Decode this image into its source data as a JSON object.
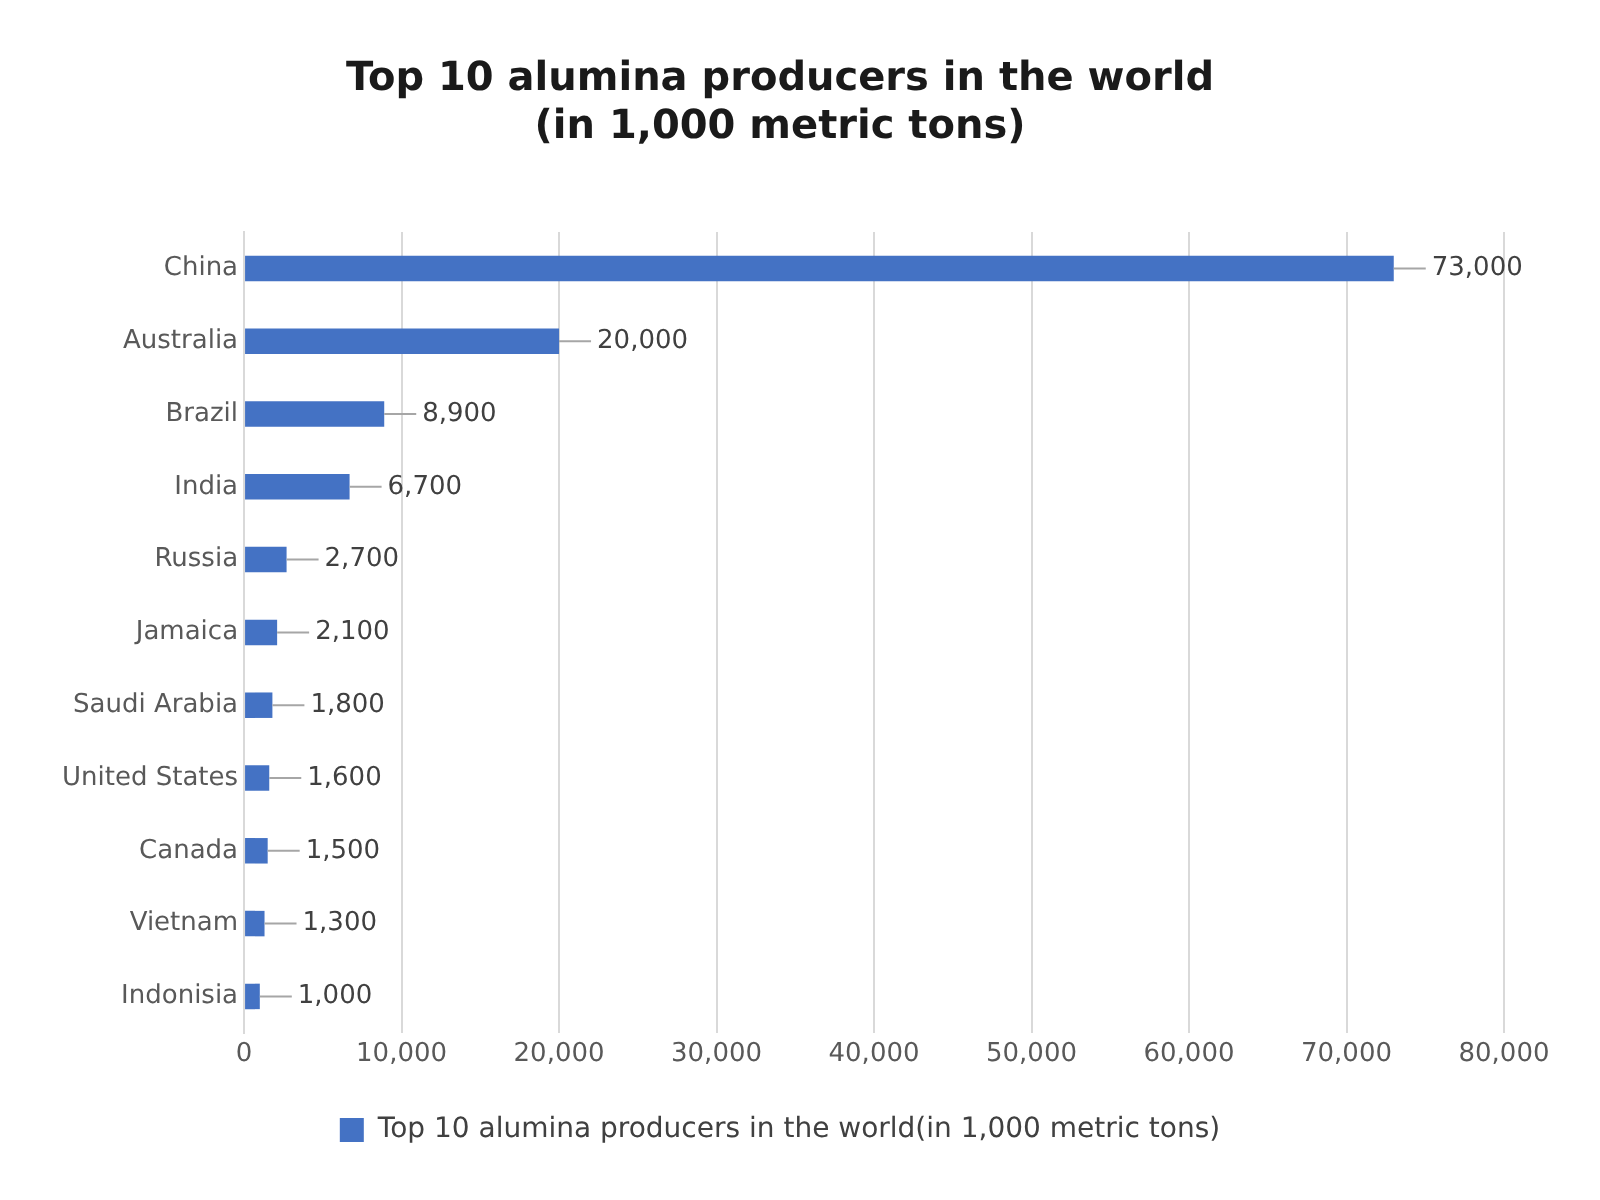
{
  "chart_data": {
    "type": "bar",
    "orientation": "horizontal",
    "title": "Top 10 alumina producers in the world\n(in 1,000 metric tons)",
    "categories": [
      "China",
      "Australia",
      "Brazil",
      "India",
      "Russia",
      "Jamaica",
      "Saudi Arabia",
      "United States",
      "Canada",
      "Vietnam",
      "Indonisia"
    ],
    "series": [
      {
        "name": "Top 10 alumina producers in the world(in 1,000 metric tons)",
        "color": "#4472c4",
        "values": [
          73000,
          20000,
          8900,
          6700,
          2700,
          2100,
          1800,
          1600,
          1500,
          1300,
          1000
        ],
        "value_labels": [
          "73,000",
          "20,000",
          "8,900",
          "6,700",
          "2,700",
          "2,100",
          "1,800",
          "1,600",
          "1,500",
          "1,300",
          "1,000"
        ]
      }
    ],
    "xlim": [
      0,
      80000
    ],
    "xticks": [
      0,
      {
        "value": 10000,
        "label": "10,000"
      },
      {
        "value": 20000,
        "label": "20,000"
      },
      {
        "value": 30000,
        "label": "30,000"
      },
      {
        "value": 40000,
        "label": "40,000"
      },
      {
        "value": 50000,
        "label": "50,000"
      },
      {
        "value": 60000,
        "label": "60,000"
      },
      {
        "value": 70000,
        "label": "70,000"
      },
      {
        "value": 80000,
        "label": "80,000"
      }
    ],
    "grid": "x",
    "legend": "bottom"
  }
}
